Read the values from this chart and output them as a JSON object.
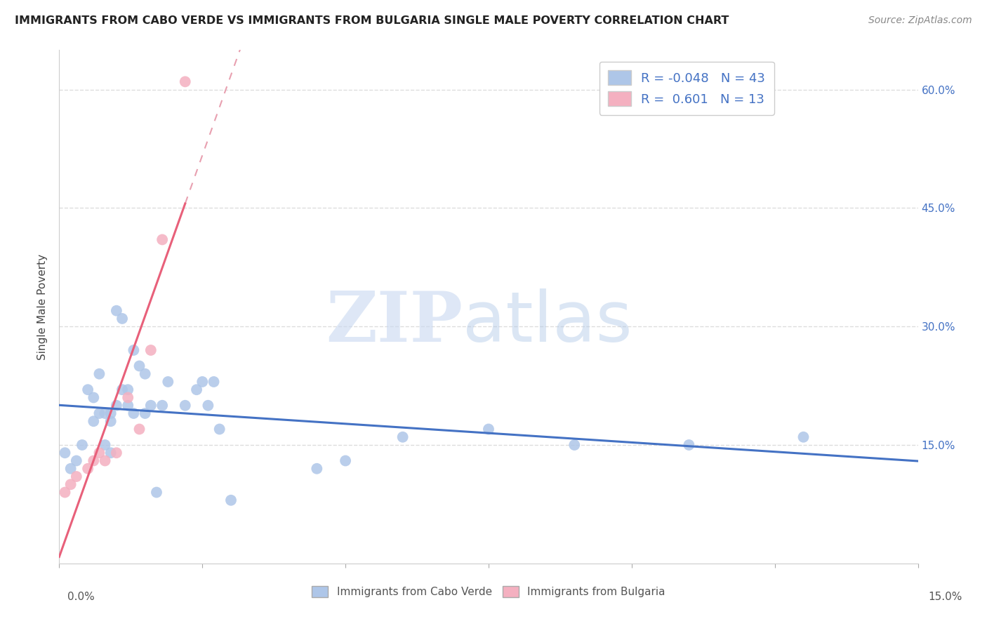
{
  "title": "IMMIGRANTS FROM CABO VERDE VS IMMIGRANTS FROM BULGARIA SINGLE MALE POVERTY CORRELATION CHART",
  "source": "Source: ZipAtlas.com",
  "ylabel": "Single Male Poverty",
  "xlim": [
    0.0,
    0.15
  ],
  "ylim": [
    0.0,
    0.65
  ],
  "cabo_verde_R": -0.048,
  "cabo_verde_N": 43,
  "bulgaria_R": 0.601,
  "bulgaria_N": 13,
  "cabo_verde_color": "#aec6e8",
  "bulgaria_color": "#f4b0c0",
  "cabo_verde_line_color": "#4472c4",
  "bulgaria_line_color": "#e8607a",
  "bulgaria_dash_color": "#e8a0b0",
  "watermark_zip_color": "#c8d8f0",
  "watermark_atlas_color": "#b0c8e8",
  "legend_text_color": "#4472c4",
  "right_axis_color": "#4472c4",
  "cabo_verde_x": [
    0.001,
    0.002,
    0.003,
    0.004,
    0.005,
    0.006,
    0.006,
    0.007,
    0.007,
    0.008,
    0.008,
    0.009,
    0.009,
    0.009,
    0.01,
    0.01,
    0.011,
    0.011,
    0.012,
    0.012,
    0.013,
    0.013,
    0.014,
    0.015,
    0.015,
    0.016,
    0.017,
    0.018,
    0.019,
    0.022,
    0.024,
    0.025,
    0.026,
    0.027,
    0.028,
    0.03,
    0.045,
    0.05,
    0.06,
    0.075,
    0.09,
    0.11,
    0.13
  ],
  "cabo_verde_y": [
    0.14,
    0.12,
    0.13,
    0.15,
    0.22,
    0.18,
    0.21,
    0.19,
    0.24,
    0.15,
    0.19,
    0.14,
    0.18,
    0.19,
    0.2,
    0.32,
    0.22,
    0.31,
    0.2,
    0.22,
    0.19,
    0.27,
    0.25,
    0.19,
    0.24,
    0.2,
    0.09,
    0.2,
    0.23,
    0.2,
    0.22,
    0.23,
    0.2,
    0.23,
    0.17,
    0.08,
    0.12,
    0.13,
    0.16,
    0.17,
    0.15,
    0.15,
    0.16
  ],
  "bulgaria_x": [
    0.001,
    0.002,
    0.003,
    0.005,
    0.006,
    0.007,
    0.008,
    0.01,
    0.012,
    0.014,
    0.016,
    0.018,
    0.022
  ],
  "bulgaria_y": [
    0.09,
    0.1,
    0.11,
    0.12,
    0.13,
    0.14,
    0.13,
    0.14,
    0.21,
    0.17,
    0.27,
    0.41,
    0.61
  ]
}
